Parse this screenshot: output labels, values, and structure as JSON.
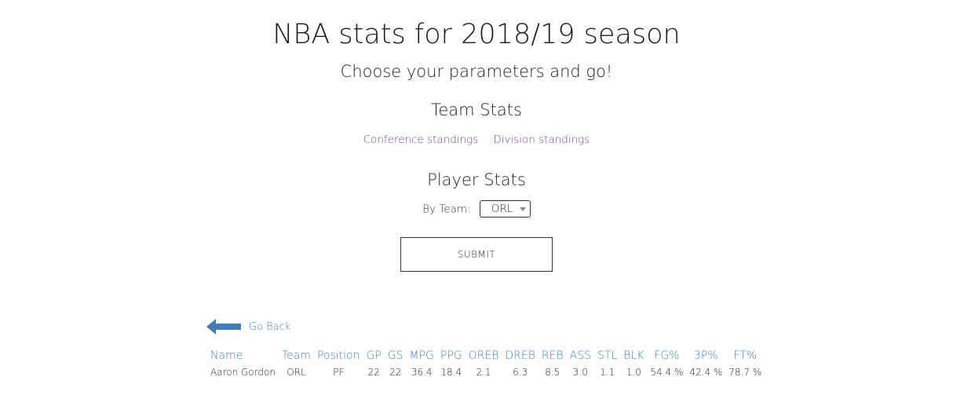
{
  "header": {
    "title": "NBA stats for 2018/19 season",
    "subtitle": "Choose your parameters and go!"
  },
  "team_stats": {
    "heading": "Team Stats",
    "links": [
      "Conference standings",
      "Division standings"
    ]
  },
  "player_stats": {
    "heading": "Player Stats",
    "by_team_label": "By Team:",
    "selected_team": "ORL",
    "submit_label": "SUBMIT"
  },
  "go_back": {
    "label": "Go Back",
    "icon": "arrow-left-icon",
    "color": "#3f7fb8"
  },
  "table": {
    "headers": [
      "Name",
      "Team",
      "Position",
      "GP",
      "GS",
      "MPG",
      "PPG",
      "OREB",
      "DREB",
      "REB",
      "ASS",
      "STL",
      "BLK",
      "FG%",
      "3P%",
      "FT%"
    ],
    "rows": [
      [
        "Aaron Gordon",
        "ORL",
        "PF",
        "22",
        "22",
        "36.4",
        "18.4",
        "2.1",
        "6.3",
        "8.5",
        "3.0",
        "1.1",
        "1.0",
        "54.4 %",
        "42.4 %",
        "78.7 %"
      ]
    ]
  }
}
